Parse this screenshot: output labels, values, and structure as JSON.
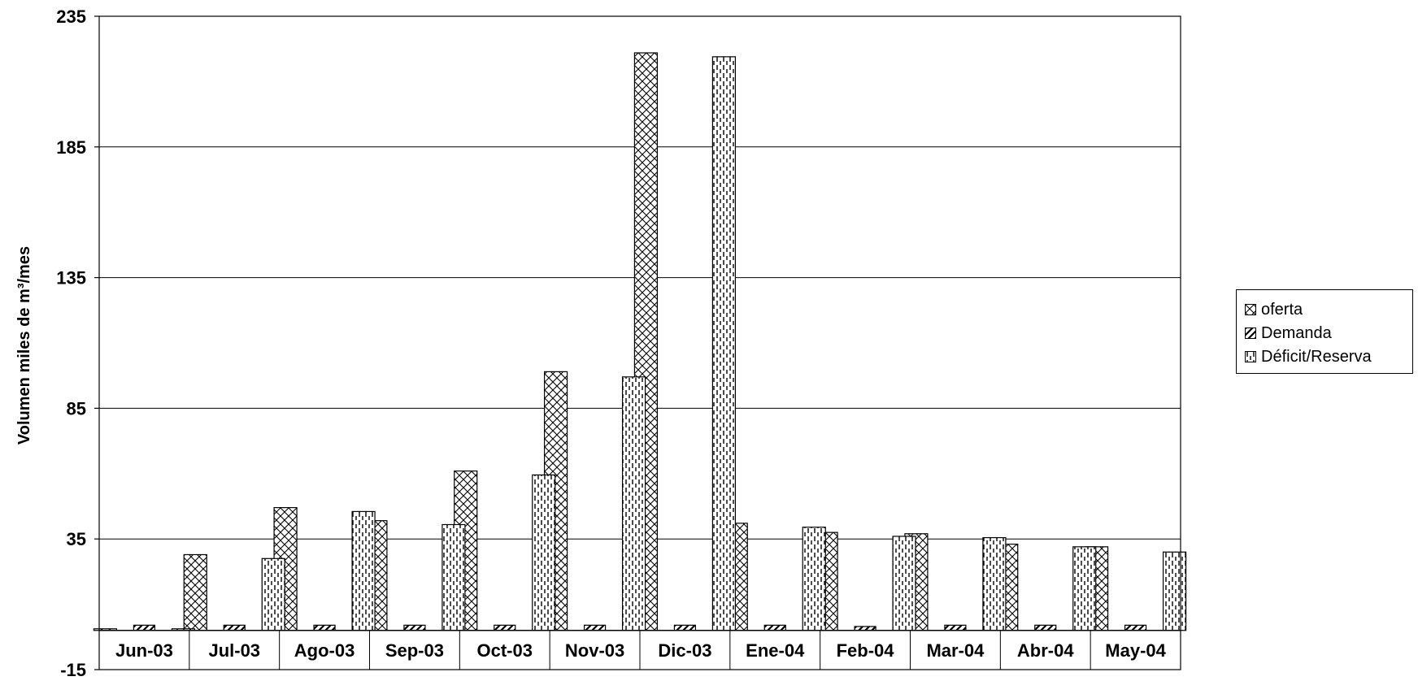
{
  "chart_data": {
    "type": "bar",
    "ylabel": "Volumen miles de m³/mes",
    "ylim": [
      -15,
      235
    ],
    "yticks": [
      "235",
      "185",
      "135",
      "85",
      "35",
      "-15"
    ],
    "categories": [
      "Jun-03",
      "Jul-03",
      "Ago-03",
      "Sep-03",
      "Oct-03",
      "Nov-03",
      "Dic-03",
      "Ene-04",
      "Feb-04",
      "Mar-04",
      "Abr-04",
      "May-04"
    ],
    "series": [
      {
        "name": "oferta",
        "pattern": "crosshatch",
        "values": [
          0.5,
          29,
          47,
          42,
          61,
          99,
          221,
          41,
          37.5,
          37,
          33,
          32
        ]
      },
      {
        "name": "Demanda",
        "pattern": "diagonal",
        "values": [
          2,
          2,
          2,
          2,
          2,
          2,
          2,
          2,
          1.5,
          2,
          2,
          2
        ]
      },
      {
        "name": "Déficit/Reserva",
        "pattern": "dashed-vertical",
        "values": [
          -0.5,
          27.5,
          45.5,
          40.5,
          59.5,
          97,
          219.5,
          39.5,
          36,
          35.5,
          32,
          30
        ]
      }
    ],
    "grid": true,
    "legend_position": "right"
  },
  "colors": {
    "axis": "#000000",
    "background": "#ffffff"
  }
}
